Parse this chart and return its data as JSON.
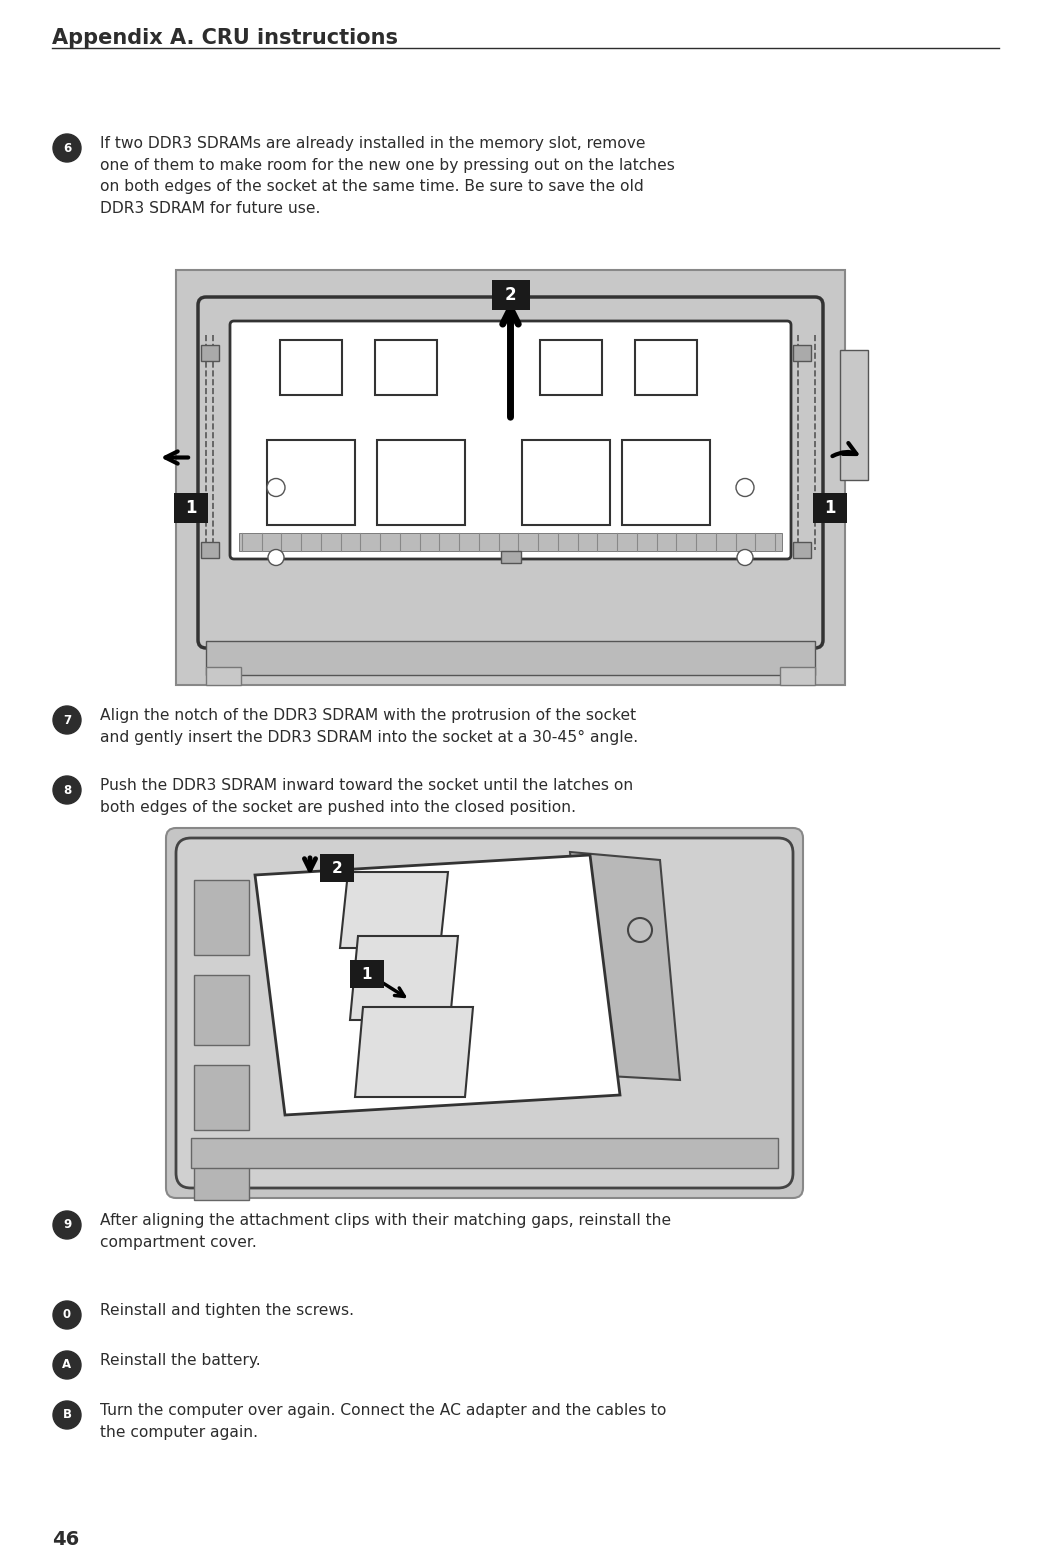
{
  "page_width": 10.51,
  "page_height": 15.59,
  "bg_color": "#ffffff",
  "header_text": "Appendix A. CRU instructions",
  "header_font_size": 15,
  "text_color": "#2d2d2d",
  "body_font_size": 11.2,
  "footer_text": "46",
  "step6_text": "If two DDR3 SDRAMs are already installed in the memory slot, remove\none of them to make room for the new one by pressing out on the latches\non both edges of the socket at the same time. Be sure to save the old\nDDR3 SDRAM for future use.",
  "step7_text": "Align the notch of the DDR3 SDRAM with the protrusion of the socket\nand gently insert the DDR3 SDRAM into the socket at a 30-45° angle.",
  "step8_text": "Push the DDR3 SDRAM inward toward the socket until the latches on\nboth edges of the socket are pushed into the closed position.",
  "step9_text": "After aligning the attachment clips with their matching gaps, reinstall the\ncompartment cover.",
  "step10_text": "Reinstall and tighten the screws.",
  "step11_text": "Reinstall the battery.",
  "step12_text": "Turn the computer over again. Connect the AC adapter and the cables to\nthe computer again.",
  "diag1_gray": "#c8c8c8",
  "diag1_white": "#ffffff",
  "diag1_dark": "#333333",
  "label_bg": "#1a1a1a",
  "label_fg": "#ffffff"
}
